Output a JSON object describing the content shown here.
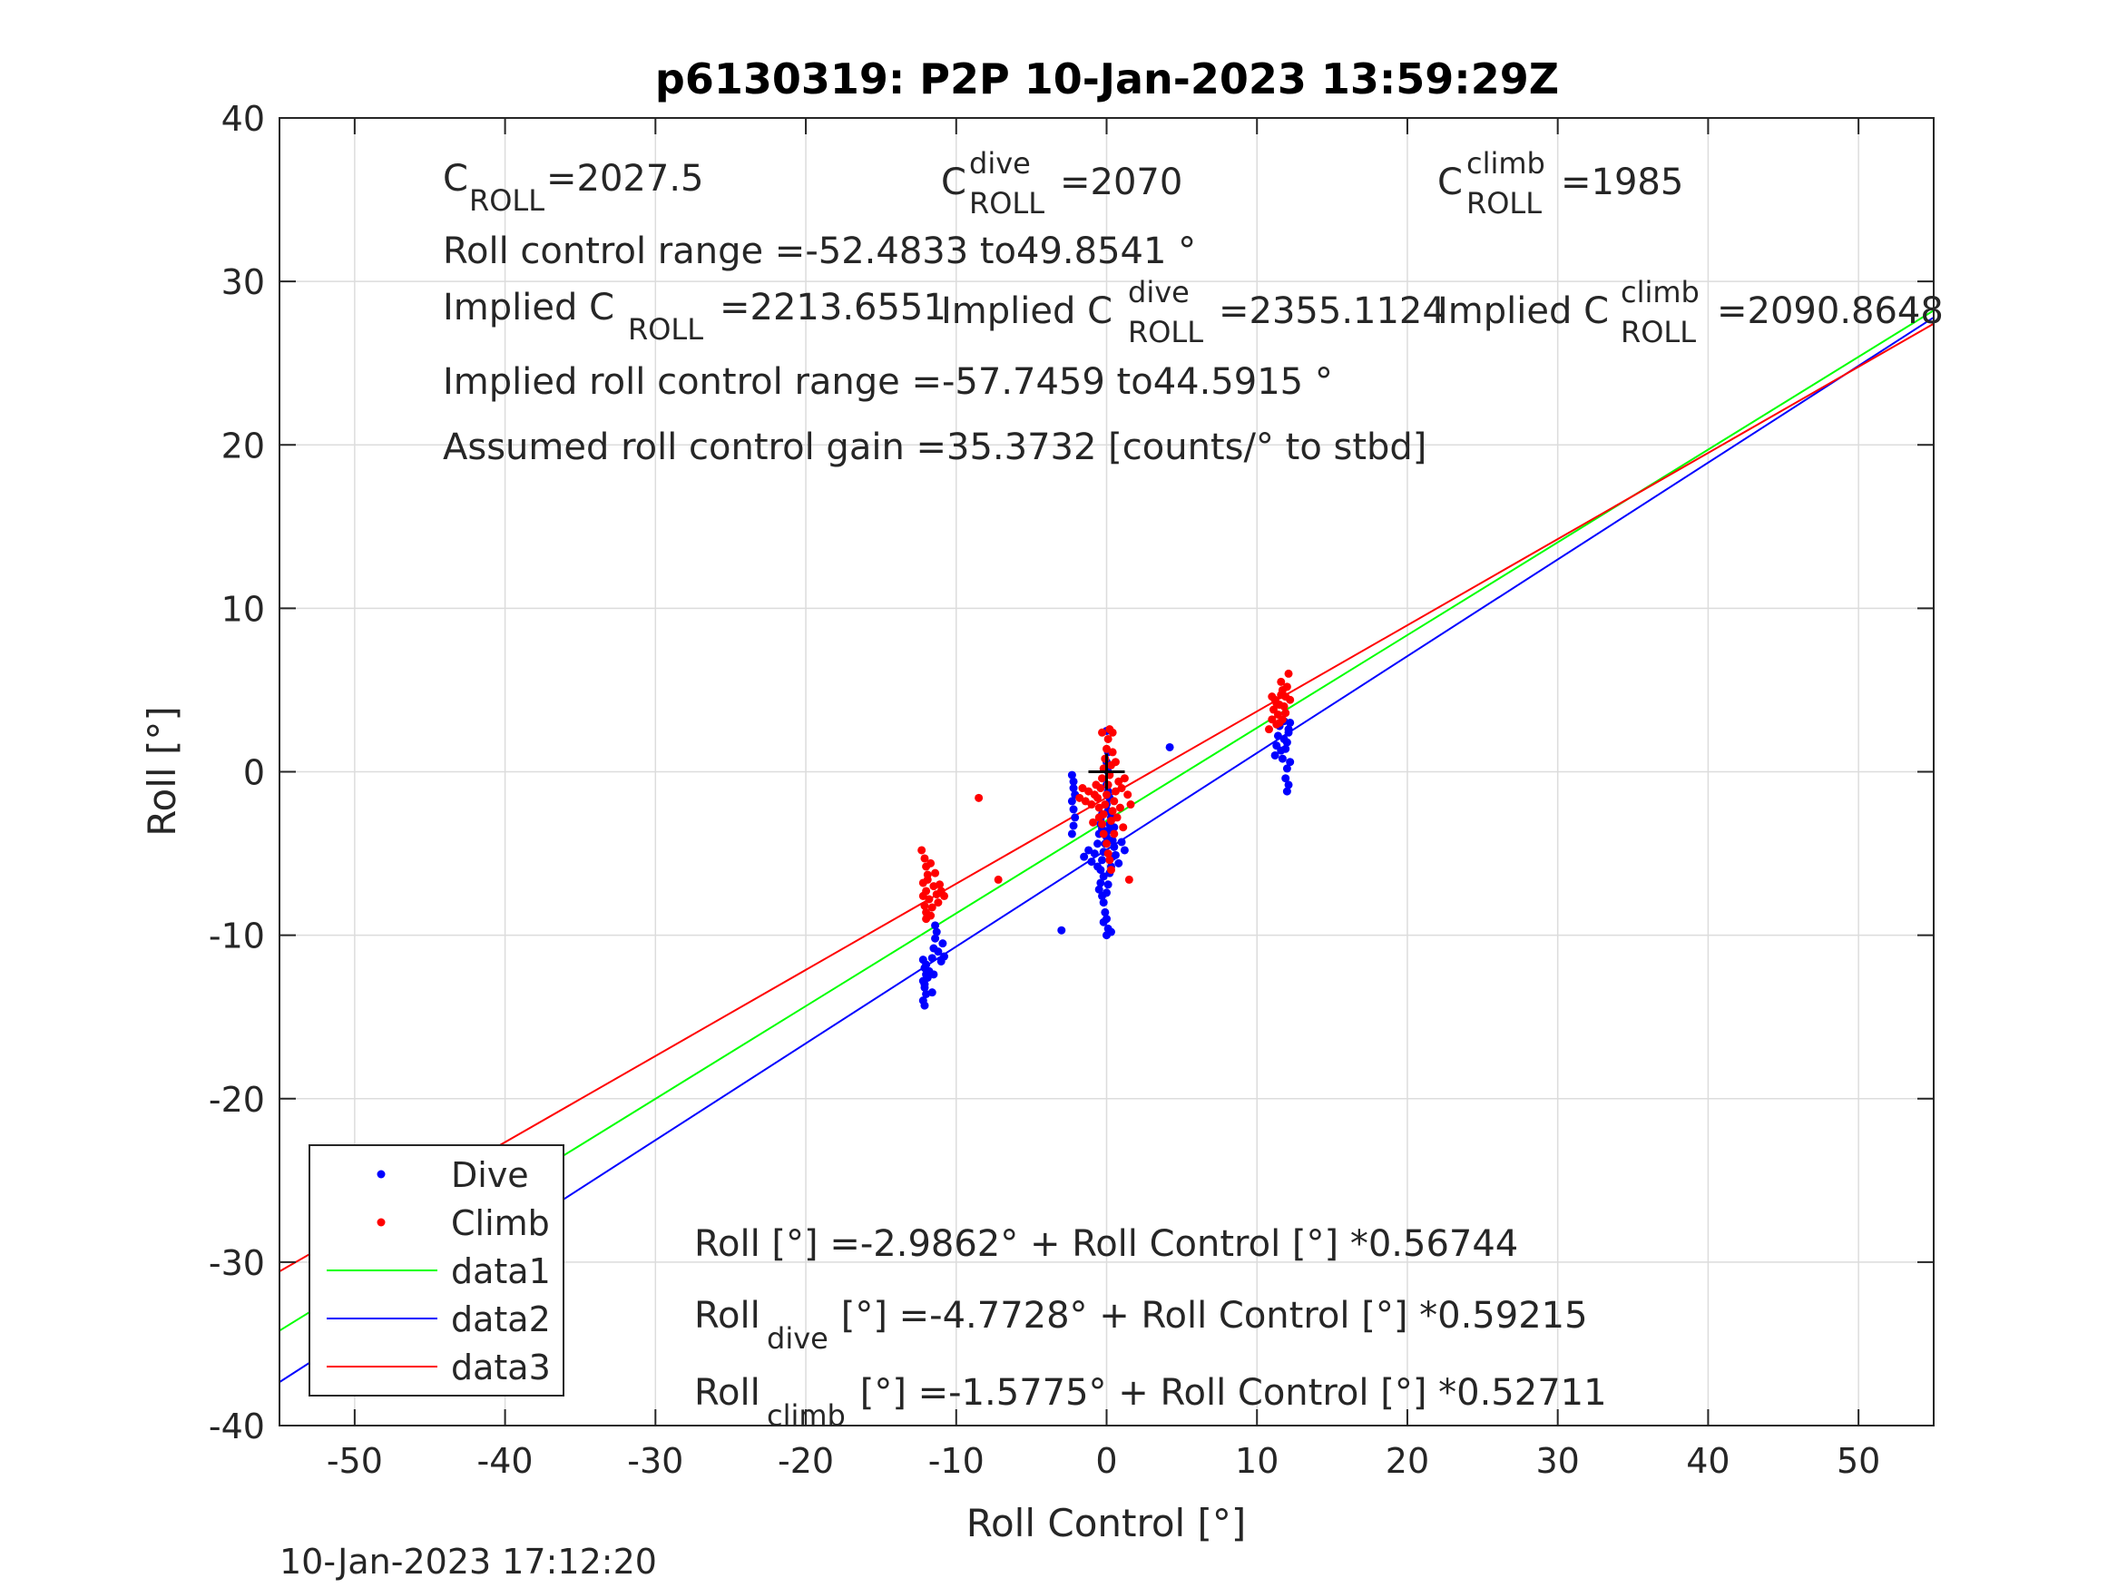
{
  "chart_data": {
    "type": "scatter",
    "title": "p6130319: P2P 10-Jan-2023 13:59:29Z",
    "xlabel": "Roll Control [°]",
    "ylabel": "Roll [°]",
    "xlim": [
      -55,
      55
    ],
    "ylim": [
      -40,
      40
    ],
    "xticks": [
      "-50",
      "-40",
      "-30",
      "-20",
      "-10",
      "0",
      "10",
      "20",
      "30",
      "40",
      "50"
    ],
    "yticks": [
      "-40",
      "-30",
      "-20",
      "-10",
      "0",
      "10",
      "20",
      "30",
      "40"
    ],
    "grid": true,
    "legend_position": "bottom-left",
    "timestamp": "10-Jan-2023 17:12:20",
    "annotations": {
      "c_roll": {
        "base": "C",
        "sub": "ROLL",
        "value": "=2027.5"
      },
      "c_roll_dive": {
        "base": "C",
        "sup": "dive",
        "sub": "ROLL",
        "value": "=2070"
      },
      "c_roll_climb": {
        "base": "C",
        "sup": "climb",
        "sub": "ROLL",
        "value": "=1985"
      },
      "roll_control_range": "Roll control range =-52.4833 to49.8541 °",
      "implied_c_roll": {
        "base": "Implied C",
        "sub": "ROLL",
        "value": "=2213.6551"
      },
      "implied_c_roll_dive": {
        "base": "Implied C",
        "sup": "dive",
        "sub": "ROLL",
        "value": "=2355.1124"
      },
      "implied_c_roll_climb": {
        "base": "Implied C",
        "sup": "climb",
        "sub": "ROLL",
        "value": "=2090.8648"
      },
      "implied_range": "Implied roll control range =-57.7459 to44.5915 °",
      "gain": "Assumed roll control gain =35.3732 [counts/° to stbd]",
      "eq_all": "Roll [°] =-2.9862° + Roll Control [°] *0.56744",
      "eq_dive": {
        "base": "Roll",
        "sub": "dive",
        "rest": " [°] =-4.7728° + Roll Control [°] *0.59215"
      },
      "eq_climb": {
        "base": "Roll",
        "sub": "climb",
        "rest": " [°] =-1.5775° + Roll Control [°] *0.52711"
      }
    },
    "fits": [
      {
        "name": "data1",
        "color": "#00ff00",
        "intercept": -2.9862,
        "slope": 0.56744
      },
      {
        "name": "data2",
        "color": "#0000ff",
        "intercept": -4.7728,
        "slope": 0.59215
      },
      {
        "name": "data3",
        "color": "#ff0000",
        "intercept": -1.5775,
        "slope": 0.52711
      }
    ],
    "series": [
      {
        "name": "Dive",
        "color": "#0000ff",
        "points": [
          [
            -12.2,
            -11.5
          ],
          [
            -12.1,
            -12.0
          ],
          [
            -12.0,
            -12.4
          ],
          [
            -12.2,
            -12.8
          ],
          [
            -12.1,
            -13.2
          ],
          [
            -12.0,
            -13.6
          ],
          [
            -12.2,
            -14.0
          ],
          [
            -12.1,
            -14.3
          ],
          [
            -12.0,
            -11.8
          ],
          [
            -11.9,
            -12.6
          ],
          [
            -12.1,
            -13.0
          ],
          [
            -11.8,
            -12.2
          ],
          [
            -11.6,
            -11.4
          ],
          [
            -11.5,
            -10.8
          ],
          [
            -11.4,
            -10.2
          ],
          [
            -11.3,
            -9.8
          ],
          [
            -11.4,
            -9.4
          ],
          [
            -11.2,
            -11.0
          ],
          [
            -11.0,
            -11.6
          ],
          [
            -10.8,
            -11.3
          ],
          [
            -11.5,
            -12.4
          ],
          [
            -11.6,
            -13.5
          ],
          [
            -10.9,
            -10.5
          ],
          [
            -2.3,
            -0.2
          ],
          [
            -2.2,
            -0.6
          ],
          [
            -2.2,
            -1.0
          ],
          [
            -2.1,
            -1.4
          ],
          [
            -2.3,
            -1.8
          ],
          [
            -2.2,
            -2.3
          ],
          [
            -2.1,
            -2.8
          ],
          [
            -2.2,
            -3.3
          ],
          [
            -2.3,
            -3.8
          ],
          [
            -1.5,
            -5.2
          ],
          [
            -1.2,
            -4.8
          ],
          [
            -1.0,
            -5.5
          ],
          [
            -0.8,
            -5.0
          ],
          [
            -0.6,
            -4.4
          ],
          [
            -0.5,
            -3.8
          ],
          [
            -0.4,
            -3.2
          ],
          [
            -0.3,
            -2.6
          ],
          [
            -0.6,
            -5.8
          ],
          [
            -0.2,
            -6.4
          ],
          [
            -0.4,
            -6.8
          ],
          [
            -0.5,
            -7.2
          ],
          [
            -0.3,
            -7.6
          ],
          [
            -0.2,
            -8.0
          ],
          [
            -0.4,
            -6.0
          ],
          [
            -0.3,
            -5.4
          ],
          [
            -0.2,
            -4.9
          ],
          [
            -0.1,
            -4.4
          ],
          [
            0.0,
            -4.0
          ],
          [
            0.1,
            -3.6
          ],
          [
            0.2,
            -3.2
          ],
          [
            0.3,
            -2.8
          ],
          [
            0.1,
            -2.4
          ],
          [
            0.0,
            -2.0
          ],
          [
            0.2,
            -1.6
          ],
          [
            0.1,
            -1.2
          ],
          [
            0.0,
            -0.8
          ],
          [
            0.1,
            0.0
          ],
          [
            0.0,
            0.6
          ],
          [
            0.1,
            1.2
          ],
          [
            0.0,
            2.5
          ],
          [
            0.3,
            -5.8
          ],
          [
            0.4,
            -5.2
          ],
          [
            0.5,
            -4.6
          ],
          [
            0.4,
            -4.2
          ],
          [
            0.2,
            -6.2
          ],
          [
            0.1,
            -6.9
          ],
          [
            0.0,
            -7.4
          ],
          [
            -0.1,
            -8.6
          ],
          [
            0.0,
            -9.0
          ],
          [
            -0.2,
            -9.2
          ],
          [
            0.1,
            -9.6
          ],
          [
            0.0,
            -10.0
          ],
          [
            0.3,
            -9.8
          ],
          [
            -0.3,
            -3.5
          ],
          [
            -0.4,
            -2.9
          ],
          [
            0.6,
            -5.1
          ],
          [
            0.8,
            -5.6
          ],
          [
            1.0,
            -4.3
          ],
          [
            1.2,
            -4.8
          ],
          [
            0.5,
            -3.4
          ],
          [
            -3.0,
            -9.7
          ],
          [
            4.2,
            1.5
          ],
          [
            11.2,
            1.0
          ],
          [
            11.3,
            1.6
          ],
          [
            11.4,
            2.2
          ],
          [
            11.5,
            2.8
          ],
          [
            11.6,
            1.3
          ],
          [
            11.7,
            0.8
          ],
          [
            11.8,
            2.0
          ],
          [
            11.9,
            1.4
          ],
          [
            12.0,
            1.8
          ],
          [
            12.1,
            2.6
          ],
          [
            12.0,
            0.2
          ],
          [
            11.9,
            -0.4
          ],
          [
            12.1,
            -0.8
          ],
          [
            12.0,
            -1.2
          ],
          [
            12.2,
            0.6
          ],
          [
            12.1,
            2.4
          ],
          [
            12.2,
            3.0
          ],
          [
            11.8,
            3.1
          ]
        ]
      },
      {
        "name": "Climb",
        "color": "#ff0000",
        "points": [
          [
            -12.3,
            -4.8
          ],
          [
            -12.1,
            -5.3
          ],
          [
            -12.0,
            -5.8
          ],
          [
            -11.9,
            -6.3
          ],
          [
            -12.2,
            -6.8
          ],
          [
            -12.0,
            -7.3
          ],
          [
            -11.8,
            -7.8
          ],
          [
            -12.1,
            -8.2
          ],
          [
            -12.0,
            -8.6
          ],
          [
            -11.7,
            -8.8
          ],
          [
            -11.5,
            -7.0
          ],
          [
            -11.3,
            -7.5
          ],
          [
            -11.1,
            -6.9
          ],
          [
            -11.0,
            -7.3
          ],
          [
            -10.8,
            -7.6
          ],
          [
            -11.6,
            -8.3
          ],
          [
            -12.2,
            -7.6
          ],
          [
            -11.9,
            -6.6
          ],
          [
            -11.4,
            -6.2
          ],
          [
            -11.7,
            -5.6
          ],
          [
            -11.2,
            -8.0
          ],
          [
            -12.0,
            -9.0
          ],
          [
            -8.5,
            -1.6
          ],
          [
            -7.2,
            -6.6
          ],
          [
            -1.8,
            -1.6
          ],
          [
            -1.6,
            -1.0
          ],
          [
            -1.4,
            -1.8
          ],
          [
            -1.2,
            -1.2
          ],
          [
            -1.0,
            -2.0
          ],
          [
            -0.8,
            -1.4
          ],
          [
            -0.7,
            -0.8
          ],
          [
            -0.6,
            -1.6
          ],
          [
            -0.5,
            -2.2
          ],
          [
            -0.4,
            -1.0
          ],
          [
            -0.3,
            -0.4
          ],
          [
            -0.2,
            0.2
          ],
          [
            -0.1,
            0.8
          ],
          [
            0.0,
            1.4
          ],
          [
            0.1,
            2.0
          ],
          [
            0.2,
            2.6
          ],
          [
            -0.3,
            2.4
          ],
          [
            0.4,
            1.2
          ],
          [
            0.3,
            0.4
          ],
          [
            0.2,
            -0.2
          ],
          [
            0.1,
            -0.8
          ],
          [
            0.0,
            -1.4
          ],
          [
            -0.1,
            -2.0
          ],
          [
            -0.2,
            -2.6
          ],
          [
            -0.3,
            -3.2
          ],
          [
            -0.2,
            -3.8
          ],
          [
            0.0,
            -4.4
          ],
          [
            0.1,
            -5.0
          ],
          [
            0.3,
            -3.0
          ],
          [
            0.4,
            -2.4
          ],
          [
            0.5,
            -1.8
          ],
          [
            0.6,
            -1.2
          ],
          [
            0.8,
            -0.6
          ],
          [
            1.0,
            -1.0
          ],
          [
            1.2,
            -0.4
          ],
          [
            0.7,
            -2.8
          ],
          [
            0.9,
            -2.2
          ],
          [
            0.4,
            2.4
          ],
          [
            0.6,
            0.6
          ],
          [
            1.1,
            -3.4
          ],
          [
            1.4,
            -1.4
          ],
          [
            1.6,
            -2.0
          ],
          [
            0.2,
            -5.4
          ],
          [
            0.3,
            -6.0
          ],
          [
            1.5,
            -6.6
          ],
          [
            0.5,
            -3.8
          ],
          [
            -0.5,
            -2.8
          ],
          [
            -0.9,
            -3.1
          ],
          [
            10.8,
            2.6
          ],
          [
            11.0,
            3.2
          ],
          [
            11.1,
            3.8
          ],
          [
            11.2,
            4.4
          ],
          [
            11.3,
            2.9
          ],
          [
            11.4,
            3.5
          ],
          [
            11.5,
            4.1
          ],
          [
            11.6,
            4.7
          ],
          [
            11.7,
            3.2
          ],
          [
            11.8,
            4.0
          ],
          [
            11.9,
            4.6
          ],
          [
            12.0,
            5.2
          ],
          [
            12.1,
            6.0
          ],
          [
            11.6,
            5.5
          ],
          [
            11.3,
            4.2
          ],
          [
            11.0,
            4.6
          ],
          [
            11.9,
            3.6
          ],
          [
            12.2,
            4.4
          ],
          [
            11.5,
            3.0
          ],
          [
            11.7,
            5.0
          ]
        ]
      }
    ],
    "marker": {
      "type": "plus",
      "x": 0,
      "y": 0,
      "color": "#000000"
    }
  }
}
